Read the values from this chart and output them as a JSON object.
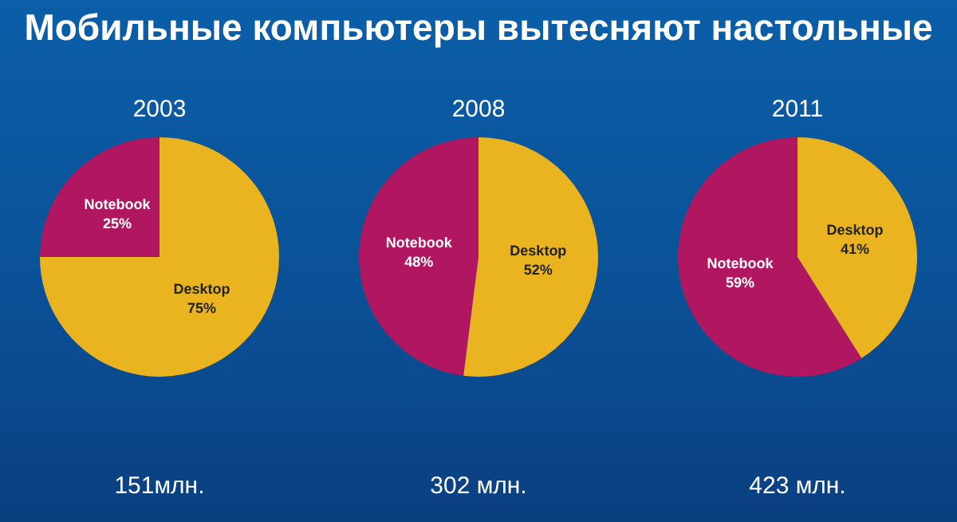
{
  "chart_data": [
    {
      "type": "pie",
      "title": "Мобильные компьютеры вытесняют настольные",
      "subtitle": "2003",
      "categories": [
        "Notebook",
        "Desktop"
      ],
      "values": [
        25,
        75
      ],
      "colors": [
        "#b01760",
        "#e9b41f"
      ],
      "value_labels": [
        "25%",
        "75%"
      ],
      "legend": false,
      "annotations": [
        "151млн."
      ]
    },
    {
      "type": "pie",
      "subtitle": "2008",
      "categories": [
        "Notebook",
        "Desktop"
      ],
      "values": [
        48,
        52
      ],
      "colors": [
        "#b01760",
        "#e9b41f"
      ],
      "value_labels": [
        "48%",
        "52%"
      ],
      "legend": false,
      "annotations": [
        "302 млн."
      ]
    },
    {
      "type": "pie",
      "subtitle": "2011",
      "categories": [
        "Notebook",
        "Desktop"
      ],
      "values": [
        59,
        41
      ],
      "colors": [
        "#b01760",
        "#e9b41f"
      ],
      "value_labels": [
        "59%",
        "41%"
      ],
      "legend": false,
      "annotations": [
        "423 млн."
      ]
    }
  ]
}
